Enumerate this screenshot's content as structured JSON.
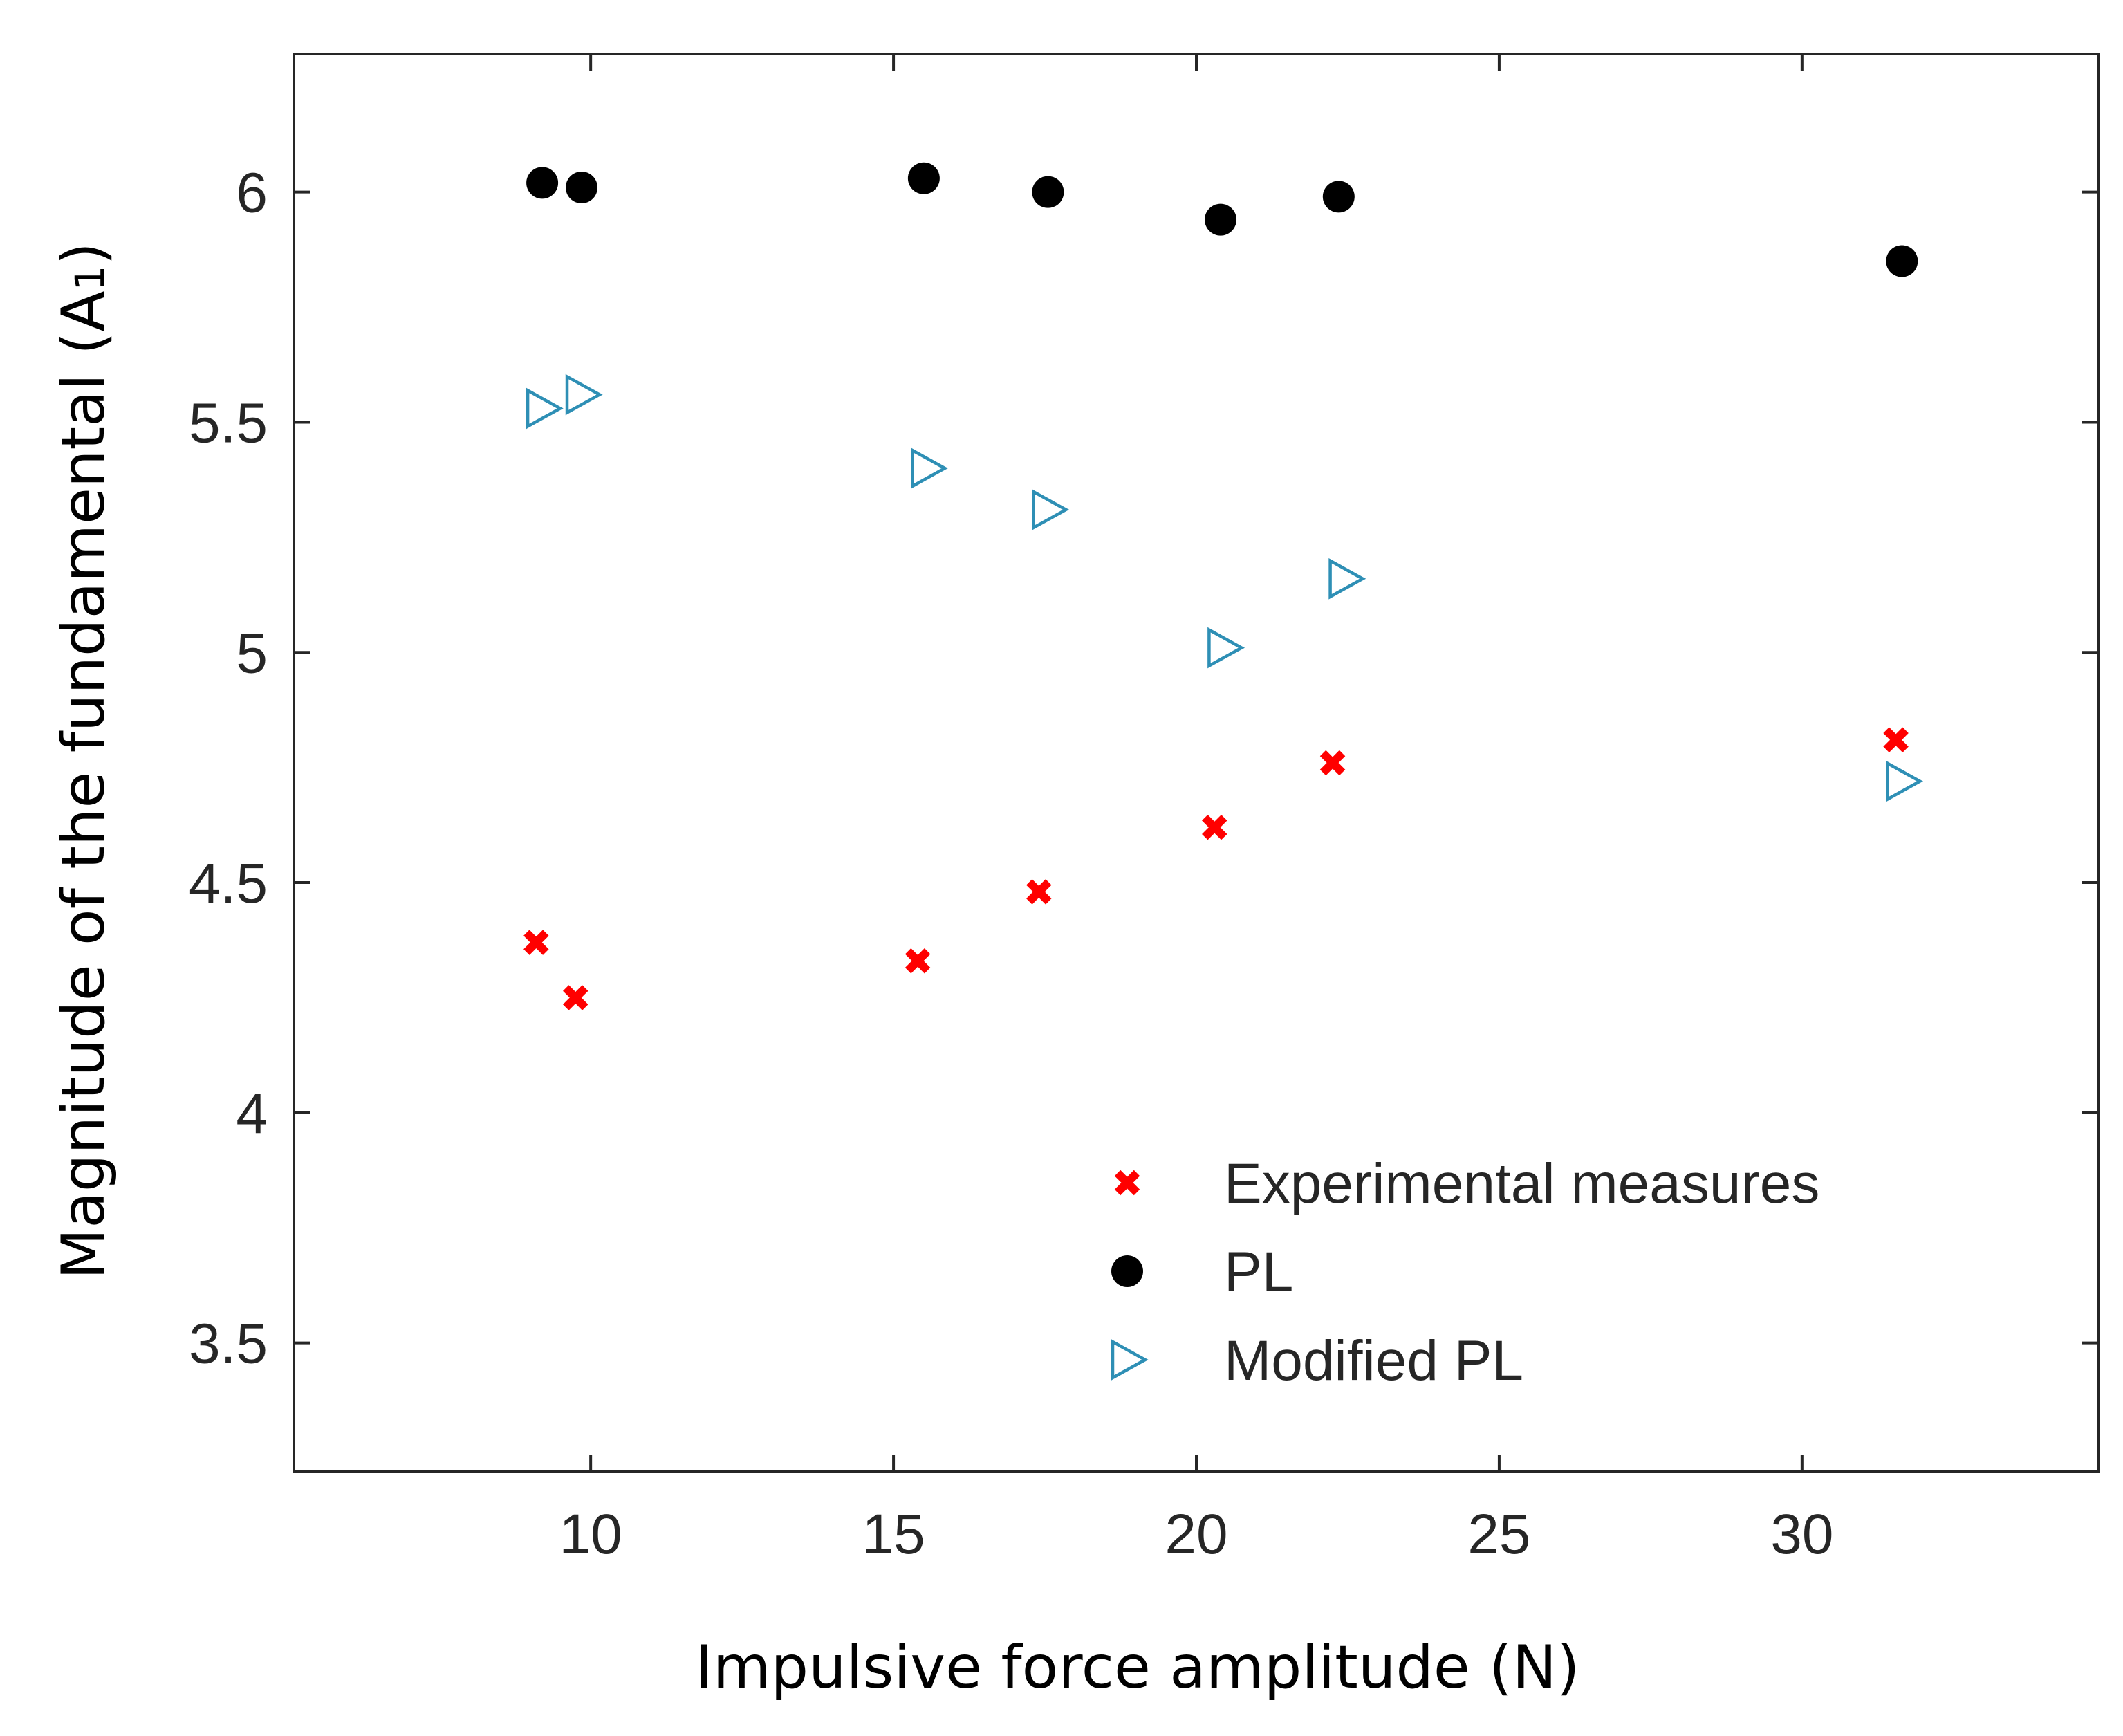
{
  "chart_data": {
    "type": "scatter",
    "title": "",
    "xlabel": "Impulsive force amplitude (N)",
    "ylabel_main": "Magnitude of the fundamental (A",
    "ylabel_sub": "1",
    "ylabel_close": ")",
    "xlim": [
      5.1,
      34.9
    ],
    "ylim": [
      3.22,
      6.3
    ],
    "xticks": [
      10,
      15,
      20,
      25,
      30
    ],
    "xtick_labels": [
      "10",
      "15",
      "20",
      "25",
      "30"
    ],
    "yticks": [
      3.5,
      4,
      4.5,
      5,
      5.5,
      6
    ],
    "ytick_labels": [
      "3.5",
      "4",
      "4.5",
      "5",
      "5.5",
      "6"
    ],
    "grid": false,
    "legend_position": "bottom-right",
    "series": [
      {
        "name": "Experimental measures",
        "marker": "x",
        "color": "#ff0000",
        "points": [
          {
            "x": 9.1,
            "y": 4.37
          },
          {
            "x": 9.75,
            "y": 4.25
          },
          {
            "x": 15.4,
            "y": 4.33
          },
          {
            "x": 17.4,
            "y": 4.48
          },
          {
            "x": 20.3,
            "y": 4.62
          },
          {
            "x": 22.25,
            "y": 4.76
          },
          {
            "x": 31.55,
            "y": 4.81
          }
        ]
      },
      {
        "name": "PL",
        "marker": "circle",
        "color": "#000000",
        "points": [
          {
            "x": 9.2,
            "y": 6.02
          },
          {
            "x": 9.85,
            "y": 6.01
          },
          {
            "x": 15.5,
            "y": 6.03
          },
          {
            "x": 17.55,
            "y": 6.0
          },
          {
            "x": 20.4,
            "y": 5.94
          },
          {
            "x": 22.35,
            "y": 5.99
          },
          {
            "x": 31.65,
            "y": 5.85
          }
        ]
      },
      {
        "name": "Modified PL",
        "marker": "triangle-right",
        "color": "#2e8fb5",
        "points": [
          {
            "x": 9.2,
            "y": 5.53
          },
          {
            "x": 9.85,
            "y": 5.56
          },
          {
            "x": 15.55,
            "y": 5.4
          },
          {
            "x": 17.55,
            "y": 5.31
          },
          {
            "x": 20.45,
            "y": 5.01
          },
          {
            "x": 22.45,
            "y": 5.16
          },
          {
            "x": 31.65,
            "y": 4.72
          }
        ]
      }
    ]
  }
}
